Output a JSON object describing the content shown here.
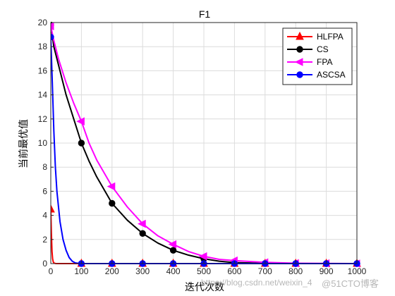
{
  "chart_data": {
    "type": "line",
    "title": "F1",
    "xlabel": "迭代次数",
    "ylabel": "当前最优值",
    "xlim": [
      0,
      1000
    ],
    "ylim": [
      0,
      20
    ],
    "xticks": [
      "0",
      "100",
      "200",
      "300",
      "400",
      "500",
      "600",
      "700",
      "800",
      "900",
      "1000"
    ],
    "yticks": [
      "0",
      "2",
      "4",
      "6",
      "8",
      "10",
      "12",
      "14",
      "16",
      "18",
      "20"
    ],
    "grid": true,
    "legend_position": "top-right",
    "series": [
      {
        "name": "HLFPA",
        "color": "#ff0000",
        "marker": "triangle-up",
        "x": [
          0,
          2,
          4,
          6,
          8,
          10,
          15,
          20,
          30,
          50,
          100,
          1000
        ],
        "y": [
          4.5,
          2.5,
          1.0,
          0.4,
          0.15,
          0.05,
          0.01,
          0.0,
          0.0,
          0.0,
          0.0,
          0.0
        ],
        "marker_x": [
          0,
          100,
          200,
          300,
          400,
          500,
          600,
          700,
          800,
          900,
          1000
        ]
      },
      {
        "name": "CS",
        "color": "#000000",
        "marker": "circle",
        "x": [
          0,
          10,
          25,
          50,
          75,
          100,
          125,
          150,
          200,
          250,
          300,
          350,
          400,
          450,
          500,
          550,
          600,
          700,
          800,
          1000
        ],
        "y": [
          19.8,
          18.0,
          16.5,
          14.0,
          12.0,
          10.0,
          8.5,
          7.2,
          5.0,
          3.6,
          2.5,
          1.7,
          1.1,
          0.7,
          0.4,
          0.2,
          0.08,
          0.02,
          0.0,
          0.0
        ],
        "marker_x": [
          0,
          100,
          200,
          300,
          400,
          500,
          600,
          700,
          800,
          900,
          1000
        ]
      },
      {
        "name": "FPA",
        "color": "#ff00ff",
        "marker": "triangle-left",
        "x": [
          0,
          10,
          25,
          50,
          75,
          100,
          125,
          150,
          200,
          250,
          300,
          350,
          400,
          450,
          500,
          550,
          600,
          700,
          800,
          1000
        ],
        "y": [
          19.7,
          18.5,
          17.0,
          15.0,
          13.3,
          11.8,
          10.0,
          8.6,
          6.4,
          4.7,
          3.3,
          2.3,
          1.6,
          1.0,
          0.6,
          0.35,
          0.25,
          0.1,
          0.03,
          0.0
        ],
        "marker_x": [
          0,
          100,
          200,
          300,
          400,
          500,
          600,
          700,
          800,
          900,
          1000
        ]
      },
      {
        "name": "ASCSA",
        "color": "#0000ff",
        "marker": "circle",
        "x": [
          0,
          5,
          10,
          15,
          20,
          30,
          40,
          50,
          60,
          70,
          80,
          90,
          100,
          1000
        ],
        "y": [
          18.8,
          15.0,
          11.0,
          8.0,
          6.0,
          3.5,
          2.0,
          1.1,
          0.5,
          0.2,
          0.06,
          0.02,
          0.0,
          0.0
        ],
        "marker_x": [
          0,
          100,
          200,
          300,
          400,
          500,
          600,
          700,
          800,
          900,
          1000
        ]
      }
    ]
  },
  "watermark": {
    "url_text": "https://blog.csdn.net/weixin_4",
    "blog_text": "@51CTO博客"
  }
}
